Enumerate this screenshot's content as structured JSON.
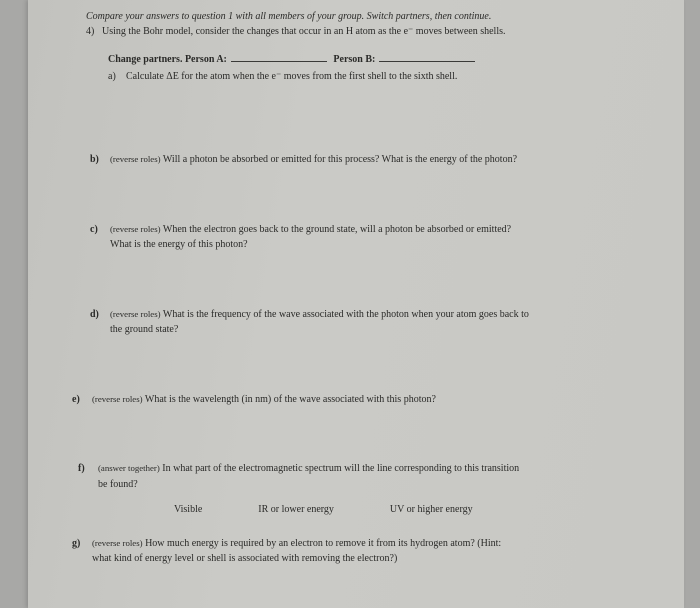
{
  "intro": "Compare your answers to question 1 with all members of your group.  Switch partners, then continue.",
  "q4": {
    "num": "4)",
    "text": "Using the Bohr model, consider the changes that occur in an H atom as the e⁻ moves between shells."
  },
  "partners": {
    "lead": "Change partners.  Person A:",
    "b": "Person B:"
  },
  "a": {
    "letter": "a)",
    "text": "Calculate ΔE for the atom when the e⁻ moves from the first shell to the sixth shell."
  },
  "b": {
    "letter": "b)",
    "rev": "(reverse roles)",
    "text": " Will a photon be absorbed or emitted for this process?  What is the energy of the photon?"
  },
  "c": {
    "letter": "c)",
    "rev": "(reverse roles)",
    "text": " When the electron goes back to the ground state, will a photon be absorbed or emitted?",
    "line2": "What is the energy of this photon?"
  },
  "d": {
    "letter": "d)",
    "rev": "(reverse roles)",
    "text": " What is the frequency of the wave associated with the photon when your atom goes back to",
    "line2": "the ground state?"
  },
  "e": {
    "letter": "e)",
    "rev": "(reverse roles)",
    "text": " What is the wavelength (in nm) of the wave associated with this photon?"
  },
  "f": {
    "letter": "f)",
    "rev": "(answer together)",
    "text": " In what part of the electromagnetic spectrum will the line corresponding to this transition",
    "line2": "be found?",
    "choices": [
      "Visible",
      "IR or lower energy",
      "UV or higher energy"
    ]
  },
  "g": {
    "letter": "g)",
    "rev": "(reverse roles)",
    "text": " How much energy is required by an electron to remove it from its hydrogen atom?  (Hint:",
    "line2": "what kind of energy level or shell is associated with removing the electron?)"
  }
}
